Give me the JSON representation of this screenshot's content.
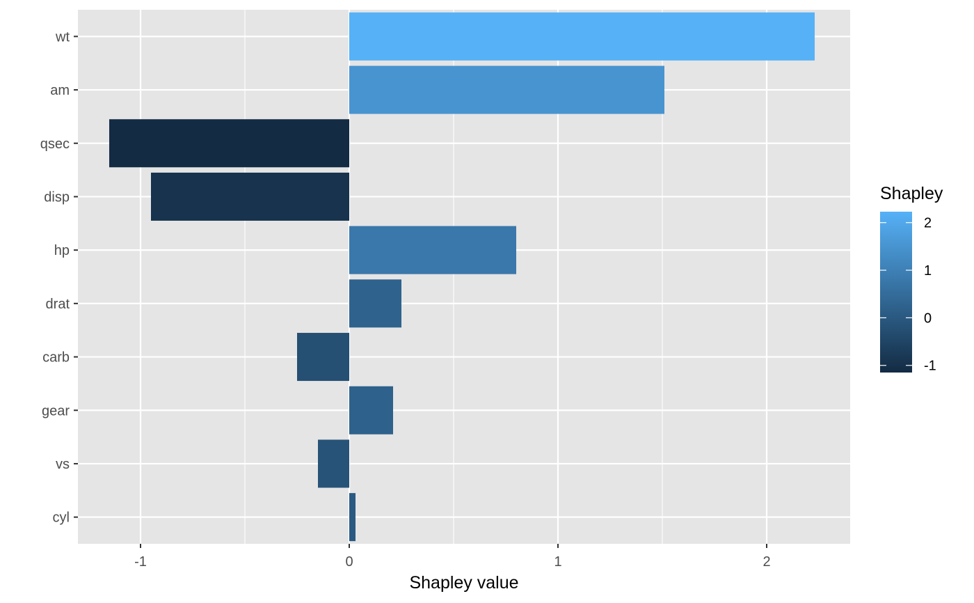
{
  "chart_data": {
    "type": "bar",
    "orientation": "horizontal",
    "xlabel": "Shapley value",
    "ylabel": "",
    "xlim": [
      -1.3,
      2.4
    ],
    "x_ticks": [
      -1,
      0,
      1,
      2
    ],
    "x_tick_labels": [
      "-1",
      "0",
      "1",
      "2"
    ],
    "grid": true,
    "categories": [
      "wt",
      "am",
      "qsec",
      "disp",
      "hp",
      "drat",
      "carb",
      "gear",
      "vs",
      "cyl"
    ],
    "values": [
      2.23,
      1.51,
      -1.15,
      -0.95,
      0.8,
      0.25,
      -0.25,
      0.21,
      -0.15,
      0.03
    ],
    "legend": {
      "title": "Shapley",
      "type": "colorbar",
      "placement": "right",
      "range": [
        -1.15,
        2.23
      ],
      "breaks": [
        2,
        1,
        0,
        -1
      ],
      "break_labels": [
        "2",
        "1",
        "0",
        "-1"
      ],
      "low_color": "#132B43",
      "high_color": "#56B1F7"
    },
    "colors": {
      "panel_background": "#E5E5E5",
      "grid": "#FFFFFF"
    }
  }
}
